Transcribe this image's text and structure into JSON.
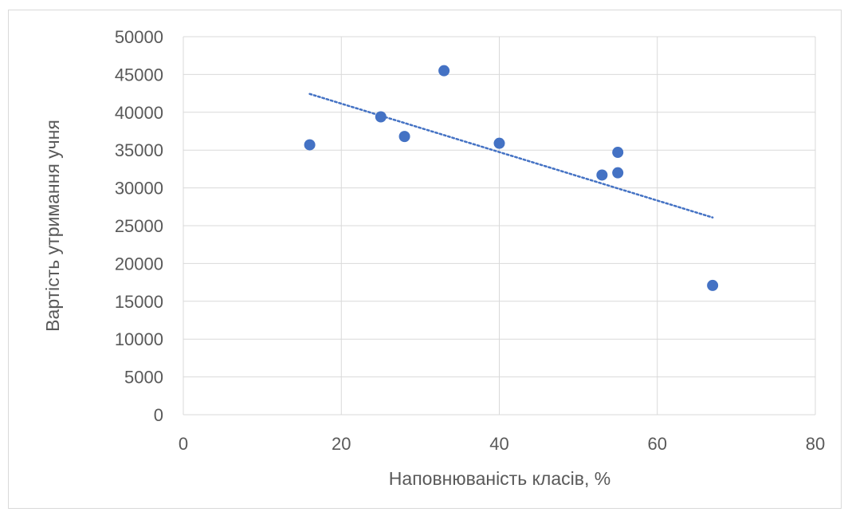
{
  "chart_data": {
    "type": "scatter",
    "xlabel": "Наповнюваність  класів, %",
    "ylabel": "Вартість  утримання  учня",
    "xlim": [
      0,
      80
    ],
    "ylim": [
      0,
      50000
    ],
    "x_ticks": [
      0,
      20,
      40,
      60,
      80
    ],
    "y_ticks": [
      0,
      5000,
      10000,
      15000,
      20000,
      25000,
      30000,
      35000,
      40000,
      45000,
      50000
    ],
    "grid": true,
    "marker_color": "#4472c4",
    "trendline": {
      "type": "linear",
      "style": "dotted",
      "color": "#4472c4",
      "x_start": 16,
      "x_end": 67
    },
    "points": [
      {
        "x": 16,
        "y": 35700
      },
      {
        "x": 25,
        "y": 39400
      },
      {
        "x": 28,
        "y": 36800
      },
      {
        "x": 33,
        "y": 45500
      },
      {
        "x": 40,
        "y": 35900
      },
      {
        "x": 53,
        "y": 31700
      },
      {
        "x": 55,
        "y": 34700
      },
      {
        "x": 55,
        "y": 32000
      },
      {
        "x": 67,
        "y": 17100
      }
    ]
  }
}
